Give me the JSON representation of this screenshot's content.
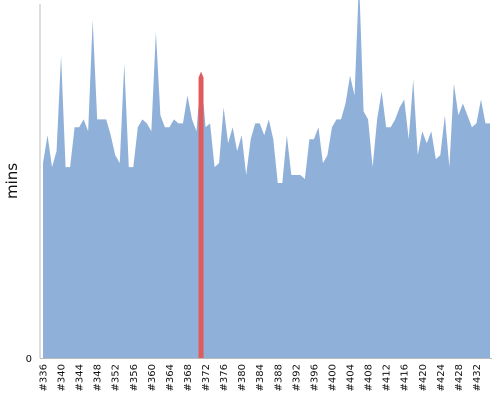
{
  "chart_data": {
    "type": "area",
    "title": "",
    "xlabel": "",
    "ylabel": "mins",
    "ylim": [
      0,
      89
    ],
    "y_ticks": [
      0
    ],
    "grid": false,
    "legend": "none",
    "colors": {
      "area": "#8fb0d8",
      "highlight": "#e05c5c",
      "axis": "#bbbbbb"
    },
    "highlight": {
      "x": 371,
      "value": 72
    },
    "x_tick_labels": [
      "#336",
      "#340",
      "#344",
      "#348",
      "#352",
      "#356",
      "#360",
      "#364",
      "#368",
      "#372",
      "#376",
      "#380",
      "#384",
      "#388",
      "#392",
      "#396",
      "#400",
      "#404",
      "#408",
      "#412",
      "#416",
      "#420",
      "#424",
      "#428",
      "#432"
    ],
    "x_start": 336,
    "values": [
      49,
      56,
      48,
      52,
      76,
      48,
      48,
      58,
      58,
      60,
      57,
      85,
      60,
      60,
      60,
      56,
      51,
      49,
      74,
      48,
      48,
      58,
      60,
      59,
      57,
      82,
      61,
      58,
      58,
      60,
      59,
      59,
      66,
      60,
      57,
      72,
      58,
      59,
      48,
      49,
      63,
      54,
      58,
      52,
      56,
      46,
      55,
      59,
      59,
      56,
      60,
      55,
      44,
      44,
      56,
      46,
      46,
      46,
      45,
      55,
      55,
      58,
      49,
      51,
      58,
      60,
      60,
      64,
      71,
      66,
      95,
      62,
      60,
      48,
      60,
      67,
      58,
      58,
      60,
      63,
      65,
      55,
      70,
      51,
      57,
      54,
      57,
      50,
      51,
      61,
      48,
      69,
      61,
      64,
      61,
      58,
      59,
      65,
      59,
      59
    ]
  }
}
